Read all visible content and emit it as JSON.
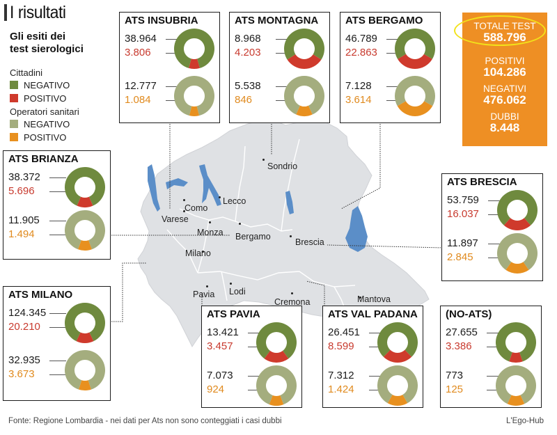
{
  "header": {
    "title": "I risultati",
    "subtitle": "Gli esiti dei test sierologici"
  },
  "legend": {
    "group1": "Cittadini",
    "group1_neg": "NEGATIVO",
    "group1_pos": "POSITIVO",
    "group2": "Operatori sanitari",
    "group2_neg": "NEGATIVO",
    "group2_pos": "POSITIVO"
  },
  "colors": {
    "cittadini_negativo": "#6f8a3e",
    "cittadini_positivo": "#cf3a2c",
    "operatori_negativo": "#a4ad7e",
    "operatori_positivo": "#e8901f",
    "totals_bg": "#ee8f24",
    "map_land": "#dfe1e4",
    "lakes": "#5b8ec8"
  },
  "totals": {
    "total_label": "TOTALE TEST",
    "total_value": "588.796",
    "positivi_label": "POSITIVI",
    "positivi_value": "104.286",
    "negativi_label": "NEGATIVI",
    "negativi_value": "476.062",
    "dubbi_label": "DUBBI",
    "dubbi_value": "8.448"
  },
  "cities": [
    "Sondrio",
    "Lecco",
    "Como",
    "Varese",
    "Monza",
    "Bergamo",
    "Brescia",
    "Milano",
    "Pavia",
    "Lodi",
    "Cremona",
    "Mantova"
  ],
  "chart_data": {
    "type": "donut",
    "series_names": [
      "Cittadini NEGATIVO",
      "Cittadini POSITIVO",
      "Operatori sanitari NEGATIVO",
      "Operatori sanitari POSITIVO"
    ],
    "regions": [
      {
        "name": "ATS INSUBRIA",
        "cittadini": {
          "negativo": 38964,
          "positivo": 3806,
          "negativo_label": "38.964",
          "positivo_label": "3.806"
        },
        "operatori": {
          "negativo": 12777,
          "positivo": 1084,
          "negativo_label": "12.777",
          "positivo_label": "1.084"
        }
      },
      {
        "name": "ATS MONTAGNA",
        "cittadini": {
          "negativo": 8968,
          "positivo": 4203,
          "negativo_label": "8.968",
          "positivo_label": "4.203"
        },
        "operatori": {
          "negativo": 5538,
          "positivo": 846,
          "negativo_label": "5.538",
          "positivo_label": "846"
        }
      },
      {
        "name": "ATS BERGAMO",
        "cittadini": {
          "negativo": 46789,
          "positivo": 22863,
          "negativo_label": "46.789",
          "positivo_label": "22.863"
        },
        "operatori": {
          "negativo": 7128,
          "positivo": 3614,
          "negativo_label": "7.128",
          "positivo_label": "3.614"
        }
      },
      {
        "name": "ATS BRIANZA",
        "cittadini": {
          "negativo": 38372,
          "positivo": 5696,
          "negativo_label": "38.372",
          "positivo_label": "5.696"
        },
        "operatori": {
          "negativo": 11905,
          "positivo": 1494,
          "negativo_label": "11.905",
          "positivo_label": "1.494"
        }
      },
      {
        "name": "ATS BRESCIA",
        "cittadini": {
          "negativo": 53759,
          "positivo": 16037,
          "negativo_label": "53.759",
          "positivo_label": "16.037"
        },
        "operatori": {
          "negativo": 11897,
          "positivo": 2845,
          "negativo_label": "11.897",
          "positivo_label": "2.845"
        }
      },
      {
        "name": "ATS MILANO",
        "cittadini": {
          "negativo": 124345,
          "positivo": 20210,
          "negativo_label": "124.345",
          "positivo_label": "20.210"
        },
        "operatori": {
          "negativo": 32935,
          "positivo": 3673,
          "negativo_label": "32.935",
          "positivo_label": "3.673"
        }
      },
      {
        "name": "ATS PAVIA",
        "cittadini": {
          "negativo": 13421,
          "positivo": 3457,
          "negativo_label": "13.421",
          "positivo_label": "3.457"
        },
        "operatori": {
          "negativo": 7073,
          "positivo": 924,
          "negativo_label": "7.073",
          "positivo_label": "924"
        }
      },
      {
        "name": "ATS VAL PADANA",
        "cittadini": {
          "negativo": 26451,
          "positivo": 8599,
          "negativo_label": "26.451",
          "positivo_label": "8.599"
        },
        "operatori": {
          "negativo": 7312,
          "positivo": 1424,
          "negativo_label": "7.312",
          "positivo_label": "1.424"
        }
      },
      {
        "name": "(NO-ATS)",
        "cittadini": {
          "negativo": 27655,
          "positivo": 3386,
          "negativo_label": "27.655",
          "positivo_label": "3.386"
        },
        "operatori": {
          "negativo": 773,
          "positivo": 125,
          "negativo_label": "773",
          "positivo_label": "125"
        }
      }
    ]
  },
  "footer": {
    "source": "Fonte: Regione Lombardia - nei dati per Ats non sono conteggiati i casi dubbi",
    "credit": "L'Ego-Hub"
  }
}
